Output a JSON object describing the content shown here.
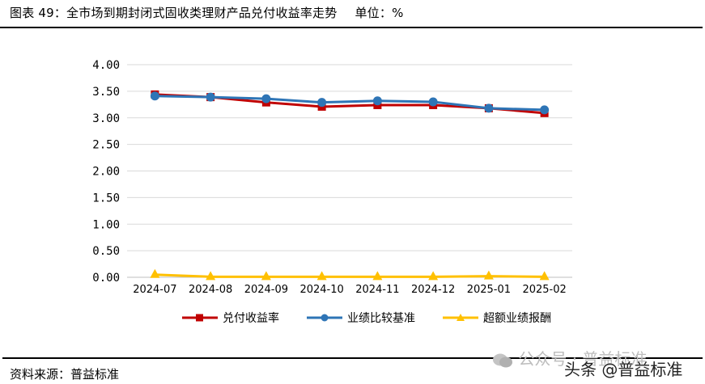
{
  "header": {
    "title": "图表 49：全市场到期封闭式固收类理财产品兑付收益率走势",
    "unit": "单位：%"
  },
  "footer": {
    "source": "资料来源：普益标准"
  },
  "watermark": {
    "line1": "公众号 · 普益标准",
    "line2": "头条 @普益标准",
    "icon": "wechat-icon"
  },
  "legend": {
    "items": [
      {
        "label": "兑付收益率",
        "color": "#C00000",
        "marker": "square"
      },
      {
        "label": "业绩比较基准",
        "color": "#2E75B6",
        "marker": "circle"
      },
      {
        "label": "超额业绩报酬",
        "color": "#FFC000",
        "marker": "triangle"
      }
    ]
  },
  "chart_data": {
    "type": "line",
    "title": "图表 49：全市场到期封闭式固收类理财产品兑付收益率走势",
    "subtitle": "单位：%",
    "xlabel": "",
    "ylabel": "",
    "categories": [
      "2024-07",
      "2024-08",
      "2024-09",
      "2024-10",
      "2024-11",
      "2024-12",
      "2025-01",
      "2025-02"
    ],
    "ylim": [
      0,
      4
    ],
    "yticks": [
      "0.00",
      "0.50",
      "1.00",
      "1.50",
      "2.00",
      "2.50",
      "3.00",
      "3.50",
      "4.00"
    ],
    "grid": true,
    "legend_position": "bottom",
    "series": [
      {
        "name": "兑付收益率",
        "color": "#C00000",
        "marker": "square",
        "values": [
          3.44,
          3.39,
          3.29,
          3.21,
          3.24,
          3.24,
          3.18,
          3.09
        ]
      },
      {
        "name": "业绩比较基准",
        "color": "#2E75B6",
        "marker": "circle",
        "values": [
          3.41,
          3.39,
          3.36,
          3.29,
          3.32,
          3.3,
          3.18,
          3.15
        ]
      },
      {
        "name": "超额业绩报酬",
        "color": "#FFC000",
        "marker": "triangle",
        "values": [
          0.05,
          0.01,
          0.01,
          0.01,
          0.01,
          0.01,
          0.02,
          0.01
        ]
      }
    ],
    "source": "资料来源：普益标准"
  }
}
